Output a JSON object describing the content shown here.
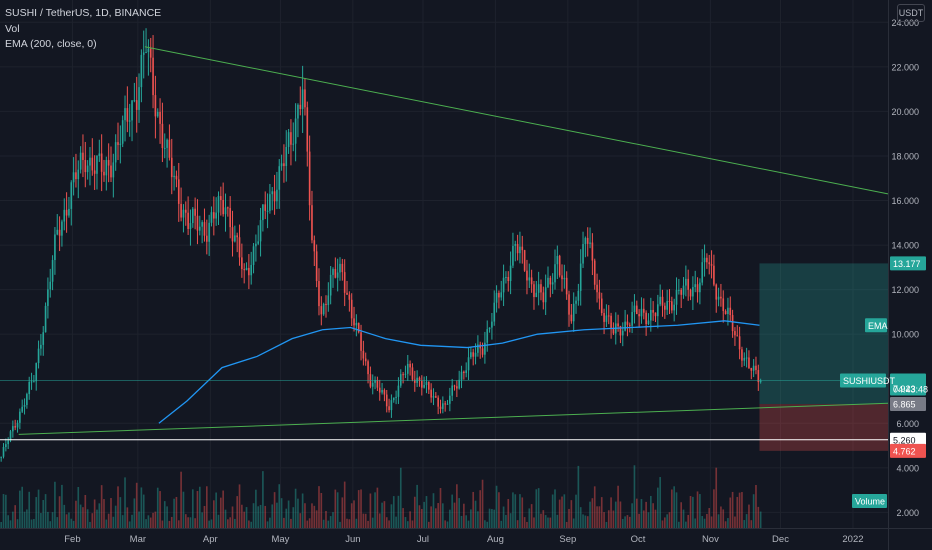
{
  "header": {
    "symbol_line": "SUSHI / TetherUS, 1D, BINANCE",
    "vol_label": "Vol",
    "ema_label": "EMA (200, close, 0)"
  },
  "unit_button": "USDT",
  "colors": {
    "background": "#131722",
    "up": "#26a69a",
    "down": "#ef5350",
    "ema": "#2196f3",
    "trendline": "#4caf50",
    "grid": "#1e222d",
    "profit_zone": "#26a69a",
    "loss_zone": "#ef5350"
  },
  "chart_data": {
    "type": "candlestick",
    "title": "SUSHI / TetherUS, 1D, BINANCE",
    "price_axis": {
      "ticks": [
        24,
        22,
        20,
        18,
        16,
        14,
        12,
        10,
        6,
        4,
        2
      ],
      "tick_labels": [
        "24.000",
        "22.000",
        "20.000",
        "18.000",
        "16.000",
        "14.000",
        "12.000",
        "10.000",
        "6.000",
        "4.000",
        "2.000"
      ],
      "ylim": [
        1.3,
        25.0
      ]
    },
    "time_axis": {
      "labels": [
        "Feb",
        "Mar",
        "Apr",
        "May",
        "Jun",
        "Jul",
        "Aug",
        "Sep",
        "Oct",
        "Nov",
        "Dec",
        "2022"
      ],
      "label_times": [
        31,
        59,
        90,
        120,
        151,
        181,
        212,
        243,
        273,
        304,
        334,
        365
      ],
      "xlim": [
        0,
        380
      ]
    },
    "series_daily_close_approx": [
      {
        "t": 0,
        "v": 4.5
      },
      {
        "t": 8,
        "v": 6.5
      },
      {
        "t": 14,
        "v": 8.0
      },
      {
        "t": 18,
        "v": 10.5
      },
      {
        "t": 24,
        "v": 14.5
      },
      {
        "t": 30,
        "v": 16.5
      },
      {
        "t": 36,
        "v": 18.0
      },
      {
        "t": 44,
        "v": 17.2
      },
      {
        "t": 52,
        "v": 19.0
      },
      {
        "t": 58,
        "v": 21.0
      },
      {
        "t": 62,
        "v": 22.8
      },
      {
        "t": 66,
        "v": 20.5
      },
      {
        "t": 72,
        "v": 17.5
      },
      {
        "t": 80,
        "v": 15.0
      },
      {
        "t": 88,
        "v": 14.8
      },
      {
        "t": 96,
        "v": 16.0
      },
      {
        "t": 104,
        "v": 12.5
      },
      {
        "t": 110,
        "v": 14.5
      },
      {
        "t": 118,
        "v": 17.0
      },
      {
        "t": 124,
        "v": 18.5
      },
      {
        "t": 129,
        "v": 21.5
      },
      {
        "t": 133,
        "v": 14.0
      },
      {
        "t": 137,
        "v": 11.0
      },
      {
        "t": 142,
        "v": 12.5
      },
      {
        "t": 146,
        "v": 13.0
      },
      {
        "t": 150,
        "v": 10.8
      },
      {
        "t": 158,
        "v": 8.0
      },
      {
        "t": 166,
        "v": 6.8
      },
      {
        "t": 174,
        "v": 8.5
      },
      {
        "t": 182,
        "v": 7.5
      },
      {
        "t": 190,
        "v": 6.7
      },
      {
        "t": 198,
        "v": 8.5
      },
      {
        "t": 206,
        "v": 9.5
      },
      {
        "t": 214,
        "v": 12.0
      },
      {
        "t": 220,
        "v": 14.0
      },
      {
        "t": 226,
        "v": 12.5
      },
      {
        "t": 232,
        "v": 11.5
      },
      {
        "t": 238,
        "v": 13.5
      },
      {
        "t": 244,
        "v": 10.5
      },
      {
        "t": 250,
        "v": 14.5
      },
      {
        "t": 256,
        "v": 11.5
      },
      {
        "t": 262,
        "v": 10.0
      },
      {
        "t": 270,
        "v": 10.8
      },
      {
        "t": 280,
        "v": 11.0
      },
      {
        "t": 290,
        "v": 11.8
      },
      {
        "t": 298,
        "v": 12.3
      },
      {
        "t": 302,
        "v": 13.3
      },
      {
        "t": 308,
        "v": 11.5
      },
      {
        "t": 314,
        "v": 10.0
      },
      {
        "t": 320,
        "v": 8.5
      },
      {
        "t": 325,
        "v": 7.9
      }
    ],
    "ema_200": [
      {
        "t": 68,
        "v": 6.0
      },
      {
        "t": 80,
        "v": 7.0
      },
      {
        "t": 95,
        "v": 8.5
      },
      {
        "t": 110,
        "v": 9.0
      },
      {
        "t": 125,
        "v": 9.8
      },
      {
        "t": 138,
        "v": 10.2
      },
      {
        "t": 150,
        "v": 10.3
      },
      {
        "t": 165,
        "v": 9.8
      },
      {
        "t": 180,
        "v": 9.5
      },
      {
        "t": 200,
        "v": 9.4
      },
      {
        "t": 215,
        "v": 9.6
      },
      {
        "t": 230,
        "v": 10.0
      },
      {
        "t": 250,
        "v": 10.2
      },
      {
        "t": 270,
        "v": 10.3
      },
      {
        "t": 290,
        "v": 10.4
      },
      {
        "t": 310,
        "v": 10.6
      },
      {
        "t": 325,
        "v": 10.4
      }
    ],
    "trendlines": [
      {
        "name": "upper",
        "from": {
          "t": 62,
          "v": 22.9
        },
        "to": {
          "t": 380,
          "v": 16.3
        }
      },
      {
        "name": "lower",
        "from": {
          "t": 8,
          "v": 5.5
        },
        "to": {
          "t": 380,
          "v": 6.9
        }
      }
    ],
    "horizontal_line": 5.26,
    "position_tool": {
      "t_start": 325,
      "t_end": 380,
      "take_profit": 13.177,
      "entry": 6.865,
      "stop_loss": 4.762
    },
    "current_price_line": 7.923,
    "labels": {
      "ema": "EMA",
      "symbol": "SUSHIUSDT",
      "last_price": "7.923",
      "countdown": "04:43:48",
      "take_profit": "13.177",
      "entry": "6.865",
      "hline": "5.260",
      "stop_loss": "4.762",
      "volume": "Volume"
    }
  }
}
